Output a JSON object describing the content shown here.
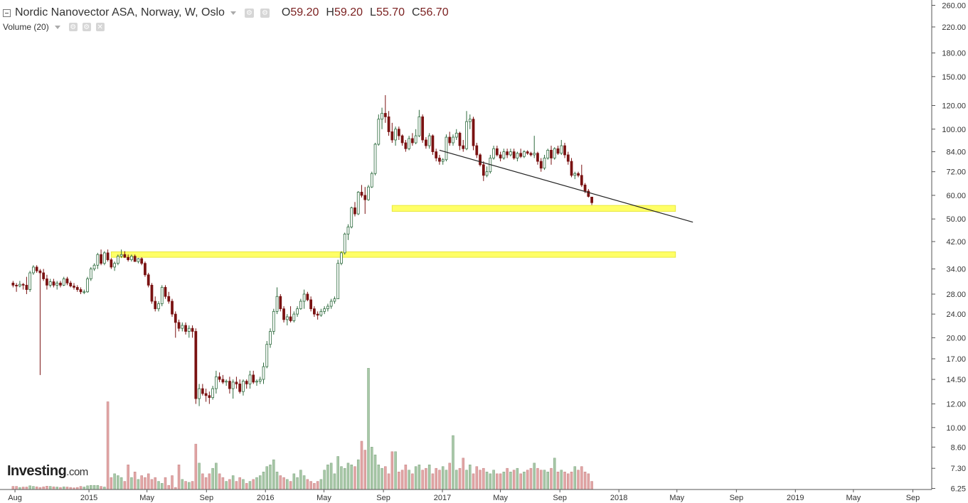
{
  "header": {
    "title": "Nordic Nanovector ASA, Norway, W, Oslo",
    "ohlc": [
      {
        "k": "O",
        "v": "59.20"
      },
      {
        "k": "H",
        "v": "59.20"
      },
      {
        "k": "L",
        "v": "55.70"
      },
      {
        "k": "C",
        "v": "56.70"
      }
    ],
    "volume_label": "Volume (20)"
  },
  "logo": {
    "brand": "Investing",
    "suffix": ".com"
  },
  "colors": {
    "up": "#2e6b3e",
    "up_body": "#ffffff",
    "down": "#7a1212",
    "vol_up": "#a8c8a8",
    "vol_down": "#e2a6a6",
    "zone": "#ffff66",
    "trend": "#222222"
  },
  "chart_data": {
    "type": "candlestick",
    "y_axis": {
      "scale": "log",
      "range": [
        6.2,
        265
      ],
      "ticks": [
        "260.00",
        "220.00",
        "180.00",
        "150.00",
        "120.00",
        "100.00",
        "84.00",
        "72.00",
        "60.00",
        "50.00",
        "42.00",
        "34.00",
        "28.00",
        "24.00",
        "20.00",
        "17.00",
        "14.50",
        "12.00",
        "10.00",
        "8.60",
        "7.30",
        "6.25"
      ]
    },
    "x_axis": {
      "range": [
        "2014-07-01",
        "2019-10-10"
      ],
      "ticks": [
        {
          "label": "Aug",
          "date": "2014-08-01"
        },
        {
          "label": "2015",
          "date": "2015-01-01"
        },
        {
          "label": "May",
          "date": "2015-05-01"
        },
        {
          "label": "Sep",
          "date": "2015-09-01"
        },
        {
          "label": "2016",
          "date": "2016-01-01"
        },
        {
          "label": "May",
          "date": "2016-05-01"
        },
        {
          "label": "Sep",
          "date": "2016-09-01"
        },
        {
          "label": "2017",
          "date": "2017-01-01"
        },
        {
          "label": "May",
          "date": "2017-05-01"
        },
        {
          "label": "Sep",
          "date": "2017-09-01"
        },
        {
          "label": "2018",
          "date": "2018-01-01"
        },
        {
          "label": "May",
          "date": "2018-05-01"
        },
        {
          "label": "Sep",
          "date": "2018-09-01"
        },
        {
          "label": "2019",
          "date": "2019-01-01"
        },
        {
          "label": "May",
          "date": "2019-05-01"
        },
        {
          "label": "Sep",
          "date": "2019-09-01"
        }
      ]
    },
    "first_candle": "2014-07-28",
    "interval": "weekly",
    "candles": [
      [
        30.5,
        31.0,
        29.5,
        30.0
      ],
      [
        30.0,
        30.5,
        28.5,
        29.8
      ],
      [
        29.8,
        31.0,
        29.5,
        30.2
      ],
      [
        30.2,
        30.5,
        29.0,
        30.0
      ],
      [
        30.0,
        32.0,
        28.0,
        29.0
      ],
      [
        29.0,
        33.5,
        28.5,
        33.0
      ],
      [
        33.0,
        35.0,
        32.5,
        34.5
      ],
      [
        34.5,
        35.0,
        33.0,
        33.5
      ],
      [
        33.5,
        34.0,
        15.0,
        33.0
      ],
      [
        33.0,
        34.0,
        31.0,
        31.5
      ],
      [
        31.5,
        32.5,
        29.0,
        30.0
      ],
      [
        30.0,
        31.5,
        29.5,
        30.8
      ],
      [
        30.8,
        31.5,
        29.5,
        30.0
      ],
      [
        30.0,
        31.0,
        29.0,
        30.5
      ],
      [
        30.5,
        31.0,
        29.5,
        30.0
      ],
      [
        30.0,
        32.0,
        29.8,
        31.5
      ],
      [
        31.5,
        32.0,
        30.0,
        30.5
      ],
      [
        30.5,
        31.0,
        29.5,
        29.8
      ],
      [
        29.8,
        30.5,
        29.0,
        29.5
      ],
      [
        29.5,
        30.0,
        28.5,
        29.0
      ],
      [
        29.0,
        29.5,
        28.0,
        28.5
      ],
      [
        28.5,
        29.0,
        28.0,
        28.5
      ],
      [
        28.5,
        32.0,
        28.3,
        31.5
      ],
      [
        31.5,
        34.5,
        31.0,
        34.0
      ],
      [
        34.0,
        35.5,
        33.5,
        35.0
      ],
      [
        35.0,
        38.5,
        34.0,
        38.0
      ],
      [
        38.0,
        39.5,
        35.0,
        35.5
      ],
      [
        35.5,
        39.0,
        35.0,
        38.5
      ],
      [
        38.5,
        39.5,
        36.0,
        36.5
      ],
      [
        36.5,
        37.0,
        34.0,
        34.5
      ],
      [
        34.5,
        36.0,
        33.5,
        35.5
      ],
      [
        35.5,
        38.0,
        35.0,
        37.5
      ],
      [
        37.5,
        39.5,
        37.0,
        38.0
      ],
      [
        38.0,
        39.0,
        37.0,
        37.2
      ],
      [
        37.2,
        38.0,
        36.0,
        36.5
      ],
      [
        36.5,
        38.0,
        36.0,
        37.5
      ],
      [
        37.5,
        38.0,
        36.0,
        36.0
      ],
      [
        36.0,
        37.0,
        35.5,
        36.8
      ],
      [
        36.8,
        37.2,
        35.0,
        35.5
      ],
      [
        35.5,
        36.0,
        32.0,
        32.5
      ],
      [
        32.5,
        33.0,
        29.5,
        30.0
      ],
      [
        30.0,
        30.5,
        26.0,
        26.5
      ],
      [
        26.5,
        27.5,
        24.5,
        25.0
      ],
      [
        25.0,
        26.5,
        24.5,
        26.0
      ],
      [
        26.0,
        30.0,
        25.5,
        29.5
      ],
      [
        29.5,
        30.0,
        27.0,
        27.5
      ],
      [
        27.5,
        28.5,
        26.0,
        26.5
      ],
      [
        26.5,
        27.0,
        23.5,
        24.0
      ],
      [
        24.0,
        24.5,
        20.0,
        22.5
      ],
      [
        22.5,
        23.0,
        21.0,
        21.5
      ],
      [
        21.5,
        22.5,
        21.0,
        22.0
      ],
      [
        22.0,
        22.5,
        20.5,
        21.0
      ],
      [
        21.0,
        22.0,
        20.0,
        21.5
      ],
      [
        21.5,
        22.0,
        20.0,
        21.0
      ],
      [
        21.0,
        21.5,
        12.0,
        12.5
      ],
      [
        12.5,
        14.0,
        11.8,
        13.5
      ],
      [
        13.5,
        14.0,
        12.8,
        13.0
      ],
      [
        13.0,
        13.5,
        12.2,
        12.8
      ],
      [
        12.8,
        13.2,
        12.0,
        12.6
      ],
      [
        12.6,
        13.8,
        12.4,
        13.5
      ],
      [
        13.5,
        15.5,
        13.0,
        14.8
      ],
      [
        14.8,
        15.3,
        14.2,
        14.5
      ],
      [
        14.5,
        15.0,
        14.0,
        14.2
      ],
      [
        14.2,
        14.5,
        13.8,
        14.3
      ],
      [
        14.3,
        14.8,
        13.0,
        13.5
      ],
      [
        13.5,
        14.5,
        12.5,
        14.2
      ],
      [
        14.2,
        14.8,
        13.5,
        14.0
      ],
      [
        14.0,
        14.5,
        13.0,
        13.2
      ],
      [
        13.2,
        14.5,
        12.8,
        14.3
      ],
      [
        14.3,
        14.5,
        13.5,
        14.0
      ],
      [
        14.0,
        15.5,
        13.5,
        15.0
      ],
      [
        15.0,
        15.5,
        14.0,
        14.2
      ],
      [
        14.2,
        14.5,
        13.8,
        14.3
      ],
      [
        14.3,
        14.8,
        14.0,
        14.5
      ],
      [
        14.5,
        16.5,
        14.0,
        16.0
      ],
      [
        16.0,
        19.5,
        15.8,
        19.0
      ],
      [
        19.0,
        21.5,
        18.5,
        21.0
      ],
      [
        21.0,
        25.0,
        20.5,
        24.5
      ],
      [
        24.5,
        29.5,
        24.0,
        27.5
      ],
      [
        27.5,
        28.0,
        24.5,
        25.0
      ],
      [
        25.0,
        25.5,
        22.5,
        23.0
      ],
      [
        23.0,
        24.0,
        22.0,
        23.5
      ],
      [
        23.5,
        25.5,
        22.5,
        22.8
      ],
      [
        22.8,
        24.5,
        22.5,
        24.0
      ],
      [
        24.0,
        25.5,
        23.5,
        25.0
      ],
      [
        25.0,
        27.0,
        24.8,
        26.5
      ],
      [
        26.5,
        29.0,
        25.0,
        28.0
      ],
      [
        28.0,
        28.5,
        26.5,
        26.8
      ],
      [
        26.8,
        27.5,
        24.5,
        25.0
      ],
      [
        25.0,
        25.5,
        23.5,
        24.0
      ],
      [
        24.0,
        24.5,
        23.0,
        23.8
      ],
      [
        23.8,
        25.0,
        23.5,
        24.5
      ],
      [
        24.5,
        25.5,
        24.0,
        25.0
      ],
      [
        25.0,
        26.0,
        24.5,
        25.5
      ],
      [
        25.5,
        27.0,
        25.0,
        26.5
      ],
      [
        26.5,
        27.5,
        26.0,
        27.0
      ],
      [
        27.0,
        36.5,
        27.0,
        35.5
      ],
      [
        35.5,
        39.0,
        35.0,
        38.5
      ],
      [
        38.5,
        45.0,
        38.0,
        44.5
      ],
      [
        44.5,
        48.0,
        42.5,
        47.0
      ],
      [
        47.0,
        55.0,
        46.5,
        54.5
      ],
      [
        54.5,
        57.0,
        51.0,
        52.0
      ],
      [
        52.0,
        62.0,
        51.5,
        61.5
      ],
      [
        61.5,
        65.0,
        59.0,
        60.0
      ],
      [
        60.0,
        64.0,
        52.0,
        58.0
      ],
      [
        58.0,
        65.0,
        57.5,
        64.0
      ],
      [
        64.0,
        72.0,
        63.5,
        71.0
      ],
      [
        71.0,
        90.0,
        70.0,
        89.0
      ],
      [
        89.0,
        112.0,
        88.0,
        108.0
      ],
      [
        108.0,
        118.0,
        100.0,
        113.0
      ],
      [
        113.0,
        130.0,
        105.0,
        110.0
      ],
      [
        110.0,
        115.0,
        95.0,
        98.0
      ],
      [
        98.0,
        105.0,
        90.0,
        92.0
      ],
      [
        92.0,
        102.0,
        88.0,
        100.0
      ],
      [
        100.0,
        102.0,
        92.0,
        95.0
      ],
      [
        95.0,
        96.0,
        88.0,
        90.0
      ],
      [
        90.0,
        92.0,
        84.0,
        86.0
      ],
      [
        86.0,
        95.0,
        85.0,
        93.0
      ],
      [
        93.0,
        97.0,
        88.0,
        90.0
      ],
      [
        90.0,
        100.0,
        89.0,
        95.0
      ],
      [
        95.0,
        116.0,
        94.0,
        110.0
      ],
      [
        110.0,
        112.0,
        90.0,
        92.0
      ],
      [
        92.0,
        94.0,
        86.0,
        88.0
      ],
      [
        88.0,
        97.0,
        86.0,
        95.0
      ],
      [
        95.0,
        96.0,
        82.0,
        84.0
      ],
      [
        84.0,
        86.0,
        78.0,
        80.0
      ],
      [
        80.0,
        82.0,
        76.0,
        78.0
      ],
      [
        78.0,
        80.0,
        76.0,
        79.0
      ],
      [
        79.0,
        96.0,
        78.0,
        94.0
      ],
      [
        94.0,
        98.0,
        88.0,
        90.0
      ],
      [
        90.0,
        96.0,
        88.0,
        94.0
      ],
      [
        94.0,
        100.0,
        92.0,
        97.0
      ],
      [
        97.0,
        98.0,
        85.0,
        88.0
      ],
      [
        88.0,
        92.0,
        84.0,
        86.0
      ],
      [
        86.0,
        115.0,
        85.0,
        106.0
      ],
      [
        106.0,
        112.0,
        100.0,
        108.0
      ],
      [
        108.0,
        110.0,
        85.0,
        88.0
      ],
      [
        88.0,
        90.0,
        80.0,
        82.0
      ],
      [
        82.0,
        83.0,
        75.0,
        76.0
      ],
      [
        76.0,
        78.0,
        67.0,
        70.0
      ],
      [
        70.0,
        75.0,
        69.0,
        72.0
      ],
      [
        72.0,
        82.0,
        71.0,
        80.0
      ],
      [
        80.0,
        88.0,
        79.0,
        86.0
      ],
      [
        86.0,
        88.0,
        81.0,
        82.0
      ],
      [
        82.0,
        84.0,
        78.0,
        80.0
      ],
      [
        80.0,
        86.0,
        79.0,
        84.0
      ],
      [
        84.0,
        86.0,
        80.0,
        82.0
      ],
      [
        82.0,
        86.0,
        81.0,
        84.0
      ],
      [
        84.0,
        86.0,
        79.0,
        80.0
      ],
      [
        80.0,
        84.0,
        78.0,
        83.0
      ],
      [
        83.0,
        86.0,
        80.0,
        81.0
      ],
      [
        81.0,
        85.0,
        80.0,
        84.0
      ],
      [
        84.0,
        85.0,
        82.0,
        83.0
      ],
      [
        83.0,
        84.0,
        81.0,
        82.0
      ],
      [
        82.0,
        95.0,
        80.0,
        83.0
      ],
      [
        83.0,
        84.0,
        76.0,
        78.0
      ],
      [
        78.0,
        80.0,
        72.0,
        74.0
      ],
      [
        74.0,
        82.0,
        73.0,
        80.0
      ],
      [
        80.0,
        86.0,
        79.0,
        85.0
      ],
      [
        85.0,
        88.0,
        76.0,
        80.0
      ],
      [
        80.0,
        87.0,
        79.0,
        86.0
      ],
      [
        86.0,
        88.0,
        82.0,
        83.0
      ],
      [
        83.0,
        92.0,
        82.0,
        88.0
      ],
      [
        88.0,
        90.0,
        80.0,
        82.0
      ],
      [
        82.0,
        84.0,
        76.0,
        78.0
      ],
      [
        78.0,
        80.0,
        69.0,
        70.0
      ],
      [
        70.0,
        72.0,
        68.0,
        71.0
      ],
      [
        71.0,
        72.0,
        69.0,
        70.0
      ],
      [
        70.0,
        76.0,
        64.0,
        65.0
      ],
      [
        65.0,
        66.0,
        61.0,
        62.0
      ],
      [
        62.0,
        63.0,
        59.0,
        59.5
      ],
      [
        59.2,
        59.2,
        55.7,
        56.7
      ]
    ],
    "volume": [
      6.35,
      6.35,
      6.3,
      6.32,
      6.32,
      6.38,
      6.35,
      6.33,
      6.3,
      6.33,
      6.36,
      6.35,
      6.33,
      6.32,
      6.3,
      6.33,
      6.32,
      6.3,
      6.28,
      6.3,
      6.35,
      6.32,
      6.38,
      6.4,
      6.4,
      6.4,
      6.35,
      6.32,
      12.2,
      6.8,
      7.0,
      6.9,
      6.8,
      6.6,
      7.5,
      6.8,
      7.1,
      6.7,
      6.9,
      6.8,
      7.0,
      6.7,
      6.8,
      6.6,
      6.5,
      6.8,
      6.4,
      6.9,
      6.3,
      7.5,
      6.7,
      6.6,
      6.55,
      6.6,
      8.8,
      7.6,
      7.0,
      6.8,
      7.0,
      7.3,
      7.6,
      7.0,
      6.8,
      6.6,
      6.7,
      6.9,
      6.6,
      6.8,
      6.7,
      6.5,
      6.6,
      6.7,
      6.8,
      6.9,
      7.1,
      7.4,
      7.5,
      7.8,
      7.1,
      6.9,
      6.8,
      6.7,
      6.6,
      7.0,
      6.8,
      7.2,
      6.9,
      6.7,
      6.6,
      6.5,
      6.6,
      6.7,
      7.2,
      7.5,
      7.6,
      7.0,
      8.0,
      7.4,
      7.3,
      7.6,
      7.5,
      7.4,
      7.8,
      9.0,
      8.4,
      15.8,
      8.6,
      8.1,
      7.5,
      7.3,
      7.4,
      7.0,
      8.3,
      8.3,
      7.1,
      7.2,
      7.5,
      7.2,
      7.0,
      7.4,
      7.5,
      7.2,
      7.3,
      7.5,
      7.0,
      7.3,
      7.2,
      7.4,
      7.2,
      7.6,
      9.4,
      7.2,
      7.3,
      7.9,
      7.2,
      7.5,
      7.0,
      7.4,
      7.2,
      7.3,
      7.1,
      7.0,
      7.2,
      7.0,
      7.0,
      7.1,
      7.3,
      7.1,
      7.2,
      7.3,
      7.0,
      7.1,
      7.2,
      7.3,
      7.6,
      7.3,
      7.2,
      7.2,
      7.1,
      7.3,
      7.9,
      7.1,
      7.2,
      7.1,
      7.0,
      7.1,
      7.4,
      7.2,
      7.4,
      7.1,
      7.0,
      6.6
    ],
    "zones": [
      {
        "from": "2016-09-19",
        "to": "2018-04-28",
        "low": 53.0,
        "high": 55.5
      },
      {
        "from": "2015-02-16",
        "to": "2018-04-28",
        "low": 37.2,
        "high": 38.8
      }
    ],
    "trendline": {
      "from": {
        "date": "2016-12-26",
        "y": 85.0
      },
      "to": {
        "date": "2018-06-03",
        "y": 48.8
      }
    }
  }
}
